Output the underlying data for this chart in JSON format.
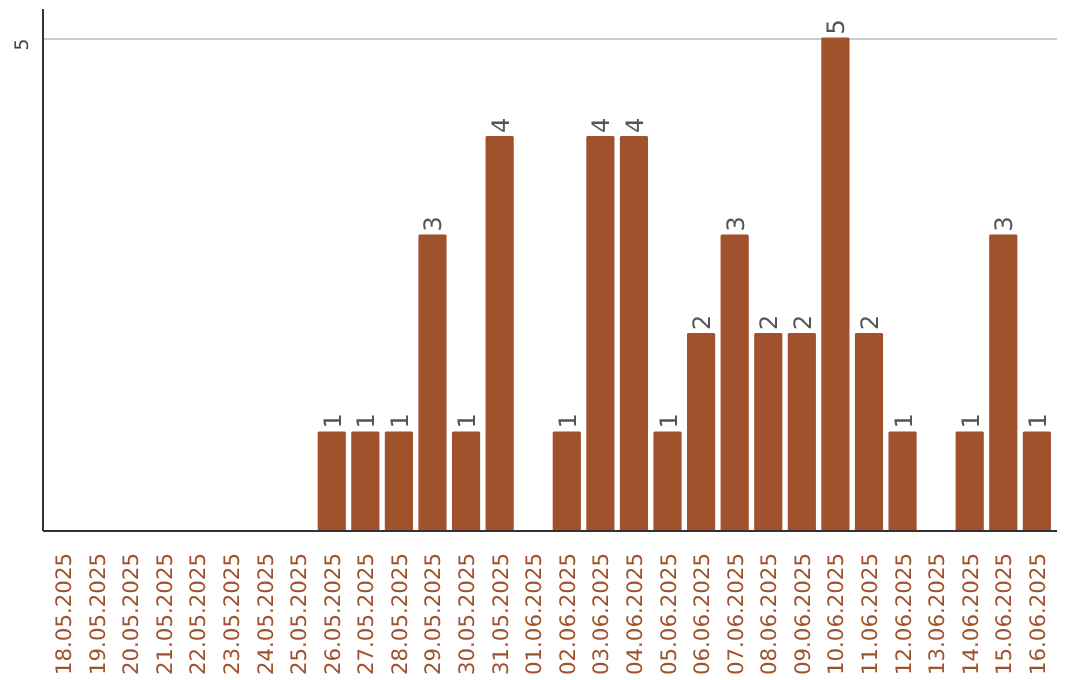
{
  "chart_data": {
    "type": "bar",
    "categories": [
      "18.05.2025",
      "19.05.2025",
      "20.05.2025",
      "21.05.2025",
      "22.05.2025",
      "23.05.2025",
      "24.05.2025",
      "25.05.2025",
      "26.05.2025",
      "27.05.2025",
      "28.05.2025",
      "29.05.2025",
      "30.05.2025",
      "31.05.2025",
      "01.06.2025",
      "02.06.2025",
      "03.06.2025",
      "04.06.2025",
      "05.06.2025",
      "06.06.2025",
      "07.06.2025",
      "08.06.2025",
      "09.06.2025",
      "10.06.2025",
      "11.06.2025",
      "12.06.2025",
      "13.06.2025",
      "14.06.2025",
      "15.06.2025",
      "16.06.2025"
    ],
    "values": [
      0,
      0,
      0,
      0,
      0,
      0,
      0,
      0,
      1,
      1,
      1,
      3,
      1,
      4,
      0,
      1,
      4,
      4,
      1,
      2,
      3,
      2,
      2,
      5,
      2,
      1,
      0,
      1,
      3,
      1
    ],
    "value_labels": [
      null,
      null,
      null,
      null,
      null,
      null,
      null,
      null,
      "1",
      "1",
      "1",
      "3",
      "1",
      "4",
      null,
      "1",
      "4",
      "4",
      "1",
      "2",
      "3",
      "2",
      "2",
      "5",
      "2",
      "1",
      null,
      "1",
      "3",
      "1"
    ],
    "color": "#a0522d",
    "ylim": [
      0,
      5.3
    ],
    "yticks": [
      5
    ],
    "grid": "y"
  }
}
